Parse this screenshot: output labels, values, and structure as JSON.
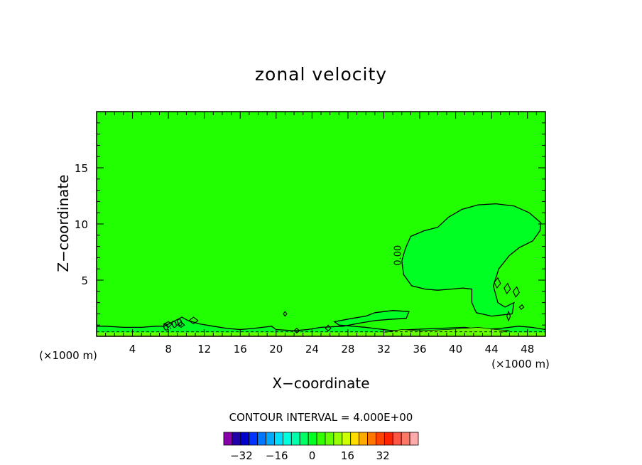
{
  "chart_data": {
    "type": "contour",
    "title": "zonal velocity",
    "xlabel": "X−coordinate",
    "ylabel": "Z−coordinate",
    "x_unit_left": "(×1000 m)",
    "x_unit_right": "(×1000 m)",
    "xlim": [
      0,
      50
    ],
    "ylim": [
      0,
      20
    ],
    "x_ticks": [
      4,
      8,
      12,
      16,
      20,
      24,
      28,
      32,
      36,
      40,
      44,
      48
    ],
    "y_ticks": [
      5,
      10,
      15
    ],
    "contour_label": "0.00",
    "contour_interval_text": "CONTOUR INTERVAL = 4.000E+00",
    "colorbar": {
      "tick_values": [
        -32,
        -16,
        0,
        16,
        32
      ],
      "tick_labels": [
        "−32",
        "−16",
        "0",
        "16",
        "32"
      ],
      "min": -40,
      "max": 48,
      "colors": [
        "#8800aa",
        "#2200aa",
        "#0000cc",
        "#0033ff",
        "#0077ff",
        "#00aaff",
        "#00ddff",
        "#00ffdd",
        "#00ffaa",
        "#00ff66",
        "#00ff22",
        "#33ff00",
        "#66ff00",
        "#99ff00",
        "#ccff00",
        "#ffdd00",
        "#ffaa00",
        "#ff7700",
        "#ff4400",
        "#ff2200",
        "#ff5544",
        "#ff7766",
        "#ffaaaa"
      ]
    },
    "background_level_color": "#22ff00",
    "negative_region_color": "#00ff22",
    "positive_region_color": "#66ff00",
    "grid": false
  }
}
